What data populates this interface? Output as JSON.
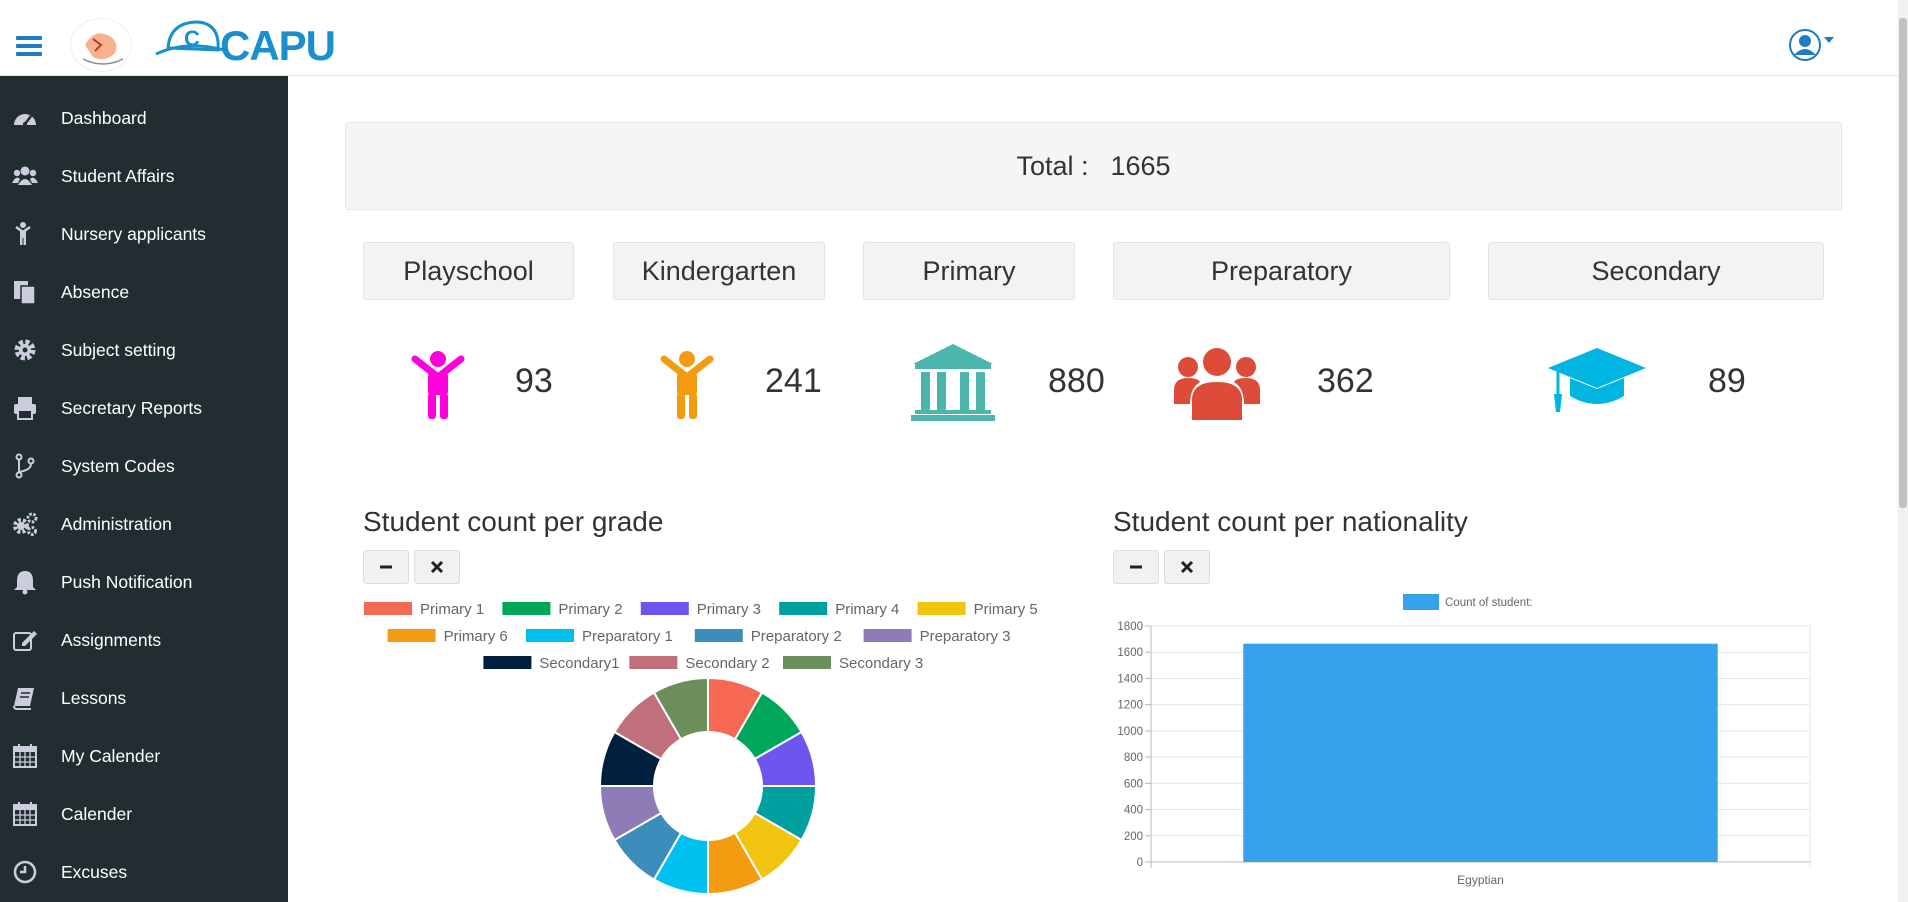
{
  "header": {
    "logo_text": "CAPU",
    "user_icon": "user-circle-icon"
  },
  "sidebar": {
    "items": [
      {
        "label": "Dashboard",
        "icon": "dashboard-icon"
      },
      {
        "label": "Student Affairs",
        "icon": "users-icon"
      },
      {
        "label": "Nursery applicants",
        "icon": "child-icon"
      },
      {
        "label": "Absence",
        "icon": "files-icon"
      },
      {
        "label": "Subject setting",
        "icon": "gear-icon"
      },
      {
        "label": "Secretary Reports",
        "icon": "printer-icon"
      },
      {
        "label": "System Codes",
        "icon": "code-branch-icon"
      },
      {
        "label": "Administration",
        "icon": "gears-icon"
      },
      {
        "label": "Push Notification",
        "icon": "bell-icon"
      },
      {
        "label": "Assignments",
        "icon": "edit-icon"
      },
      {
        "label": "Lessons",
        "icon": "book-icon"
      },
      {
        "label": "My Calender",
        "icon": "calendar-icon"
      },
      {
        "label": "Calender",
        "icon": "calendar-icon"
      },
      {
        "label": "Excuses",
        "icon": "clock-icon"
      }
    ]
  },
  "total": {
    "label": "Total :",
    "value": "1665"
  },
  "categories": [
    {
      "name": "Playschool",
      "count": "93",
      "icon": "child-icon",
      "color": "#ff00dd"
    },
    {
      "name": "Kindergarten",
      "count": "241",
      "icon": "child-icon",
      "color": "#f39c12"
    },
    {
      "name": "Primary",
      "count": "880",
      "icon": "institution-icon",
      "color": "#4db6ac"
    },
    {
      "name": "Preparatory",
      "count": "362",
      "icon": "users-icon",
      "color": "#dd4b39"
    },
    {
      "name": "Secondary",
      "count": "89",
      "icon": "graduation-cap-icon",
      "color": "#00b5e2"
    }
  ],
  "charts": {
    "grade_title": "Student count per grade",
    "nationality_title": "Student count per nationality",
    "minus_icon": "minus-icon",
    "close_icon": "close-icon"
  },
  "chart_data": [
    {
      "type": "pie",
      "title": "Student count per grade",
      "categories": [
        "Primary 1",
        "Primary 2",
        "Primary 3",
        "Primary 4",
        "Primary 5",
        "Primary 6",
        "Preparatory 1",
        "Preparatory 2",
        "Preparatory 3",
        "Secondary1",
        "Secondary 2",
        "Secondary 3"
      ],
      "values": [
        1,
        1,
        1,
        1,
        1,
        1,
        1,
        1,
        1,
        1,
        1,
        1
      ],
      "colors": [
        "#f56954",
        "#00a65a",
        "#6d55f0",
        "#00a0a0",
        "#f1c40f",
        "#f39c12",
        "#00c0ef",
        "#3c8dbc",
        "#8e7cb6",
        "#001f3f",
        "#c0707a",
        "#6b8e5a"
      ],
      "legend": "top"
    },
    {
      "type": "bar",
      "title": "Student count per nationality",
      "categories": [
        "Egyptian"
      ],
      "series": [
        {
          "name": "Count of student:",
          "values": [
            1665
          ],
          "color": "#36a2eb"
        }
      ],
      "ylim": [
        0,
        1800
      ],
      "yticks": [
        0,
        200,
        400,
        600,
        800,
        1000,
        1200,
        1400,
        1600,
        1800
      ],
      "grid": true,
      "legend": "top"
    }
  ]
}
